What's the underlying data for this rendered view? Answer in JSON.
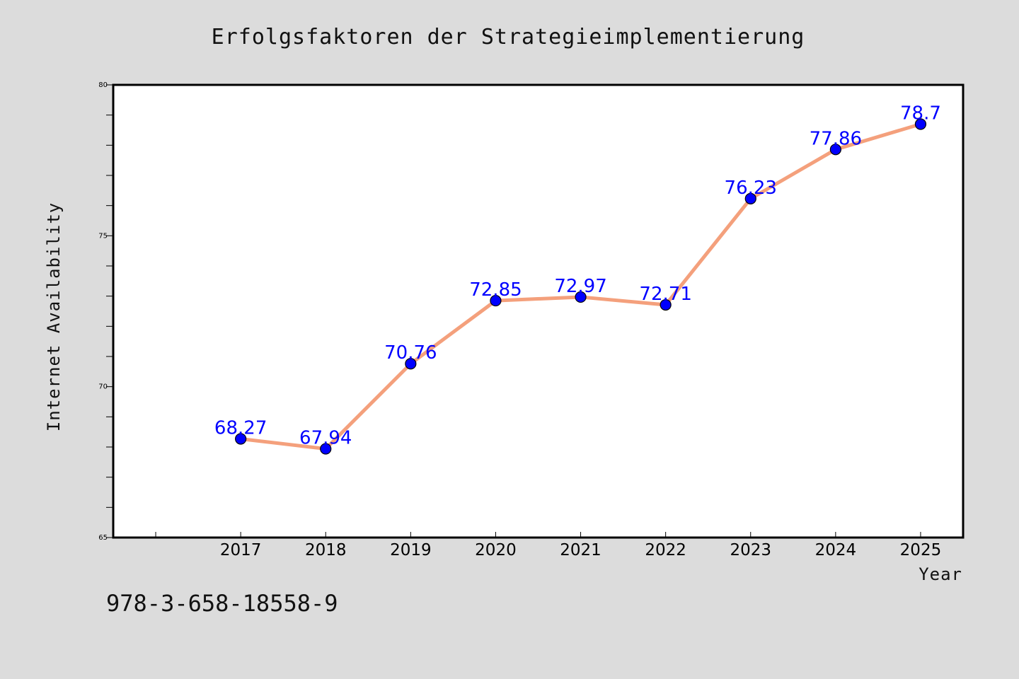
{
  "chart_data": {
    "type": "line",
    "title": "Erfolgsfaktoren der Strategieimplementierung",
    "xlabel": "Year",
    "ylabel": "Internet Availability",
    "categories": [
      "2017",
      "2018",
      "2019",
      "2020",
      "2021",
      "2022",
      "2023",
      "2024",
      "2025"
    ],
    "series": [
      {
        "values": [
          68.27,
          67.94,
          70.76,
          72.85,
          72.97,
          72.71,
          76.23,
          77.86,
          78.7
        ],
        "labels": [
          "68.27",
          "67.94",
          "70.76",
          "72.85",
          "72.97",
          "72.71",
          "76.23",
          "77.86",
          "78.7"
        ]
      }
    ],
    "ylim": [
      65,
      80
    ],
    "yticks": [
      "65",
      "70",
      "75",
      "80"
    ],
    "xlim": [
      2015.5,
      2025.5
    ],
    "grid": false,
    "line_color": "#f4a07c",
    "marker_color": "#0000ff",
    "label_color": "#0000ff"
  },
  "footer": {
    "isbn": "978-3-658-18558-9"
  }
}
